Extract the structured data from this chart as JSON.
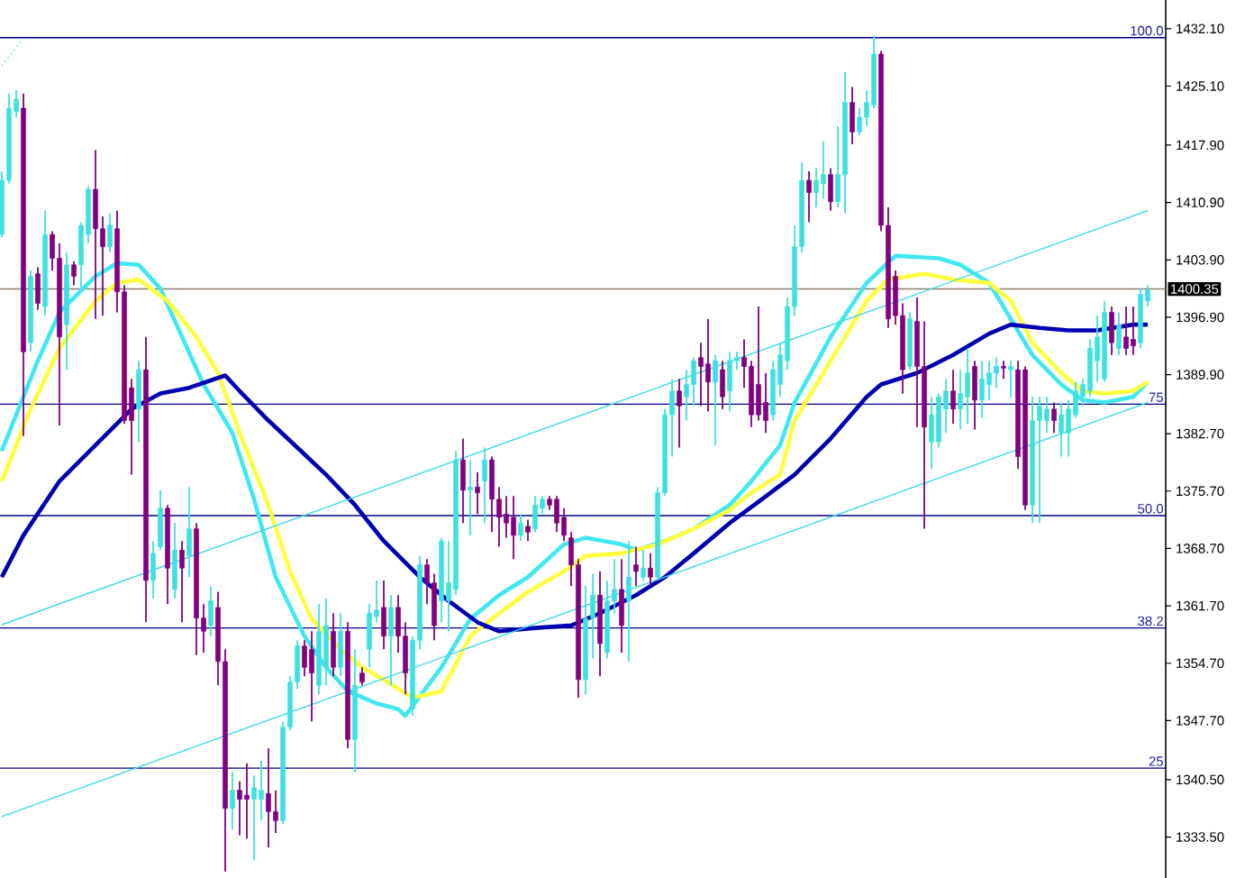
{
  "chart_data": {
    "type": "candlestick",
    "categories": [
      null,
      null,
      null,
      null,
      null,
      null,
      null,
      null,
      null,
      null,
      null,
      null,
      null,
      null,
      null,
      null,
      null,
      null,
      null,
      null,
      null,
      null,
      null,
      null,
      null,
      null,
      null,
      null,
      null,
      null,
      null,
      null,
      null,
      null,
      null,
      null,
      null,
      null,
      null,
      null,
      null,
      null,
      null,
      null,
      null,
      null,
      null,
      null,
      null,
      null,
      null,
      null,
      null,
      null,
      null,
      null,
      null,
      null,
      null,
      null,
      null,
      null,
      null,
      null,
      null,
      null,
      null,
      null,
      null,
      null,
      null,
      null,
      null,
      null,
      null,
      null,
      null,
      null,
      null,
      null,
      null,
      null,
      null,
      null,
      null,
      null,
      null,
      null,
      null,
      null,
      null,
      null,
      null,
      null,
      null,
      null,
      null,
      null,
      null,
      null,
      null,
      null,
      null,
      null,
      null,
      null,
      null,
      null,
      null,
      null,
      null,
      null,
      null,
      null,
      null,
      null,
      null,
      null,
      null,
      null,
      null,
      null,
      null,
      null,
      null,
      null,
      null,
      null,
      null,
      null,
      null,
      null,
      null,
      null,
      null,
      null,
      null,
      null,
      null,
      null,
      null,
      null,
      null,
      null,
      null,
      null,
      null,
      null,
      null,
      null,
      null,
      null,
      null,
      null,
      null,
      null,
      null,
      null,
      null,
      null
    ],
    "ohlc": [
      [
        1407.0,
        1414.7,
        1406.6,
        1413.6
      ],
      [
        1413.6,
        1424.2,
        1413.2,
        1422.4
      ],
      [
        1422.0,
        1424.6,
        1421.3,
        1423.5
      ],
      [
        1422.4,
        1424.2,
        1382.4,
        1392.7
      ],
      [
        1393.8,
        1402.6,
        1392.7,
        1401.9
      ],
      [
        1402.2,
        1403.0,
        1397.8,
        1398.6
      ],
      [
        1398.2,
        1409.9,
        1397.1,
        1407.0
      ],
      [
        1407.0,
        1407.4,
        1402.6,
        1404.1
      ],
      [
        1404.1,
        1405.9,
        1383.7,
        1394.5
      ],
      [
        1396.0,
        1404.8,
        1390.5,
        1403.3
      ],
      [
        1403.3,
        1403.7,
        1400.8,
        1401.9
      ],
      [
        1403.3,
        1408.5,
        1400.4,
        1408.1
      ],
      [
        1407.0,
        1412.9,
        1405.9,
        1412.5
      ],
      [
        1412.5,
        1417.3,
        1396.7,
        1407.7
      ],
      [
        1407.7,
        1409.2,
        1397.1,
        1405.5
      ],
      [
        1405.5,
        1409.6,
        1404.8,
        1408.1
      ],
      [
        1407.7,
        1409.9,
        1397.5,
        1400.0
      ],
      [
        1400.0,
        1400.8,
        1383.9,
        1384.3
      ],
      [
        1388.3,
        1389.4,
        1377.7,
        1384.3
      ],
      [
        1385.7,
        1391.6,
        1381.7,
        1390.5
      ],
      [
        1390.5,
        1394.5,
        1359.7,
        1364.8
      ],
      [
        1364.8,
        1369.6,
        1362.6,
        1368.1
      ],
      [
        1368.9,
        1375.8,
        1368.5,
        1373.6
      ],
      [
        1373.6,
        1374.0,
        1361.9,
        1366.3
      ],
      [
        1363.7,
        1371.8,
        1362.6,
        1368.5
      ],
      [
        1368.5,
        1369.6,
        1359.7,
        1366.3
      ],
      [
        1367.8,
        1376.2,
        1365.2,
        1371.1
      ],
      [
        1371.1,
        1371.8,
        1355.7,
        1360.2
      ],
      [
        1360.2,
        1361.9,
        1356.0,
        1358.6
      ],
      [
        1359.3,
        1364.1,
        1358.0,
        1362.3
      ],
      [
        1361.5,
        1363.4,
        1352.0,
        1354.9
      ],
      [
        1354.9,
        1356.4,
        1329.3,
        1337.0
      ],
      [
        1337.0,
        1341.4,
        1334.4,
        1339.2
      ],
      [
        1339.2,
        1340.3,
        1333.7,
        1338.1
      ],
      [
        1338.6,
        1342.5,
        1333.3,
        1338.1
      ],
      [
        1338.1,
        1341.0,
        1330.7,
        1339.5
      ],
      [
        1338.1,
        1342.8,
        1335.5,
        1339.2
      ],
      [
        1338.8,
        1344.3,
        1332.2,
        1336.6
      ],
      [
        1336.6,
        1339.2,
        1334.0,
        1335.5
      ],
      [
        1335.5,
        1347.6,
        1335.1,
        1346.9
      ],
      [
        1346.9,
        1353.1,
        1346.5,
        1352.4
      ],
      [
        1352.4,
        1357.5,
        1351.6,
        1356.8
      ],
      [
        1356.8,
        1357.5,
        1353.1,
        1354.2
      ],
      [
        1356.4,
        1358.6,
        1347.6,
        1353.5
      ],
      [
        1352.0,
        1361.9,
        1350.9,
        1358.6
      ],
      [
        1354.2,
        1362.6,
        1352.0,
        1359.3
      ],
      [
        1358.6,
        1360.8,
        1353.1,
        1354.2
      ],
      [
        1354.2,
        1360.8,
        1353.1,
        1358.6
      ],
      [
        1358.6,
        1359.7,
        1344.3,
        1345.4
      ],
      [
        1345.4,
        1356.4,
        1341.4,
        1352.0
      ],
      [
        1353.5,
        1354.2,
        1352.0,
        1352.4
      ],
      [
        1356.4,
        1361.9,
        1354.2,
        1360.8
      ],
      [
        1360.4,
        1364.8,
        1359.7,
        1361.2
      ],
      [
        1361.5,
        1364.8,
        1356.4,
        1358.0
      ],
      [
        1358.0,
        1363.0,
        1352.0,
        1361.5
      ],
      [
        1361.5,
        1363.0,
        1356.0,
        1358.0
      ],
      [
        1358.0,
        1359.7,
        1350.9,
        1353.5
      ],
      [
        1349.1,
        1358.0,
        1348.3,
        1357.5
      ],
      [
        1357.5,
        1367.8,
        1356.4,
        1366.7
      ],
      [
        1366.7,
        1367.4,
        1361.9,
        1364.5
      ],
      [
        1364.5,
        1365.6,
        1357.5,
        1359.3
      ],
      [
        1362.3,
        1370.0,
        1359.7,
        1369.6
      ],
      [
        1362.3,
        1369.6,
        1358.6,
        1364.5
      ],
      [
        1363.7,
        1380.6,
        1363.0,
        1379.5
      ],
      [
        1379.5,
        1382.1,
        1371.8,
        1375.8
      ],
      [
        1375.8,
        1379.5,
        1370.3,
        1376.2
      ],
      [
        1376.2,
        1378.0,
        1372.9,
        1375.5
      ],
      [
        1376.9,
        1381.0,
        1371.8,
        1379.5
      ],
      [
        1379.5,
        1379.9,
        1370.7,
        1374.7
      ],
      [
        1374.7,
        1376.2,
        1368.9,
        1372.5
      ],
      [
        1372.9,
        1375.1,
        1370.0,
        1371.8
      ],
      [
        1372.5,
        1375.1,
        1367.4,
        1370.3
      ],
      [
        1370.3,
        1372.9,
        1369.6,
        1371.8
      ],
      [
        1371.4,
        1372.2,
        1369.6,
        1370.7
      ],
      [
        1371.1,
        1375.1,
        1370.7,
        1374.0
      ],
      [
        1373.6,
        1375.1,
        1372.9,
        1374.7
      ],
      [
        1374.7,
        1375.1,
        1373.4,
        1374.0
      ],
      [
        1374.7,
        1375.1,
        1370.7,
        1371.8
      ],
      [
        1372.5,
        1373.6,
        1369.6,
        1370.3
      ],
      [
        1370.0,
        1370.7,
        1364.1,
        1366.7
      ],
      [
        1366.7,
        1367.4,
        1350.5,
        1352.7
      ],
      [
        1352.7,
        1364.1,
        1350.9,
        1360.2
      ],
      [
        1360.2,
        1365.6,
        1355.3,
        1363.0
      ],
      [
        1363.0,
        1365.9,
        1353.1,
        1357.1
      ],
      [
        1356.0,
        1364.8,
        1355.3,
        1362.3
      ],
      [
        1362.3,
        1367.4,
        1360.8,
        1363.7
      ],
      [
        1363.7,
        1367.4,
        1356.0,
        1359.3
      ],
      [
        1362.3,
        1369.6,
        1354.9,
        1365.2
      ],
      [
        1366.7,
        1368.9,
        1364.1,
        1365.9
      ],
      [
        1365.2,
        1368.5,
        1364.8,
        1366.3
      ],
      [
        1366.3,
        1368.1,
        1364.1,
        1365.2
      ],
      [
        1365.2,
        1376.2,
        1364.8,
        1375.5
      ],
      [
        1375.5,
        1385.7,
        1375.1,
        1385.0
      ],
      [
        1385.0,
        1389.4,
        1379.9,
        1387.9
      ],
      [
        1387.9,
        1389.4,
        1381.0,
        1386.1
      ],
      [
        1387.2,
        1390.5,
        1384.3,
        1388.7
      ],
      [
        1388.7,
        1392.0,
        1386.1,
        1391.6
      ],
      [
        1392.0,
        1393.8,
        1386.1,
        1390.9
      ],
      [
        1391.2,
        1396.7,
        1385.4,
        1389.0
      ],
      [
        1389.0,
        1392.3,
        1381.3,
        1391.6
      ],
      [
        1390.5,
        1391.6,
        1385.7,
        1387.2
      ],
      [
        1387.9,
        1392.7,
        1385.4,
        1391.6
      ],
      [
        1391.6,
        1392.7,
        1390.5,
        1392.0
      ],
      [
        1392.0,
        1394.2,
        1388.3,
        1390.9
      ],
      [
        1390.9,
        1391.6,
        1383.5,
        1385.0
      ],
      [
        1388.7,
        1398.2,
        1384.3,
        1385.0
      ],
      [
        1386.5,
        1390.1,
        1382.8,
        1384.3
      ],
      [
        1385.0,
        1391.6,
        1384.3,
        1390.5
      ],
      [
        1388.7,
        1393.8,
        1387.2,
        1392.3
      ],
      [
        1391.6,
        1399.3,
        1390.5,
        1398.2
      ],
      [
        1398.2,
        1408.1,
        1397.1,
        1405.5
      ],
      [
        1405.5,
        1415.8,
        1404.8,
        1413.6
      ],
      [
        1413.6,
        1414.7,
        1408.5,
        1412.1
      ],
      [
        1412.1,
        1415.1,
        1410.3,
        1413.6
      ],
      [
        1413.2,
        1418.4,
        1411.4,
        1414.3
      ],
      [
        1414.3,
        1415.1,
        1409.9,
        1411.0
      ],
      [
        1411.0,
        1420.2,
        1410.3,
        1414.3
      ],
      [
        1414.3,
        1426.8,
        1409.6,
        1423.1
      ],
      [
        1423.1,
        1425.0,
        1418.0,
        1419.5
      ],
      [
        1419.5,
        1422.4,
        1419.1,
        1421.3
      ],
      [
        1421.3,
        1424.6,
        1420.2,
        1423.1
      ],
      [
        1422.8,
        1431.2,
        1422.4,
        1429.0
      ],
      [
        1429.0,
        1429.4,
        1407.4,
        1408.1
      ],
      [
        1408.1,
        1410.3,
        1395.6,
        1396.7
      ],
      [
        1401.9,
        1402.6,
        1396.0,
        1397.1
      ],
      [
        1397.1,
        1398.6,
        1387.6,
        1390.5
      ],
      [
        1390.9,
        1397.5,
        1390.5,
        1396.7
      ],
      [
        1396.4,
        1399.3,
        1383.5,
        1390.9
      ],
      [
        1390.9,
        1396.4,
        1371.1,
        1383.5
      ],
      [
        1381.7,
        1387.2,
        1378.4,
        1385.0
      ],
      [
        1381.7,
        1387.6,
        1381.0,
        1387.2
      ],
      [
        1385.7,
        1389.4,
        1382.8,
        1387.9
      ],
      [
        1387.9,
        1390.5,
        1383.9,
        1385.7
      ],
      [
        1385.7,
        1390.5,
        1383.2,
        1387.6
      ],
      [
        1387.2,
        1393.1,
        1383.9,
        1390.1
      ],
      [
        1390.9,
        1391.6,
        1383.2,
        1386.8
      ],
      [
        1386.8,
        1391.6,
        1384.6,
        1389.4
      ],
      [
        1388.7,
        1391.6,
        1386.8,
        1390.1
      ],
      [
        1390.1,
        1392.0,
        1388.3,
        1390.9
      ],
      [
        1390.9,
        1391.6,
        1389.4,
        1390.7
      ],
      [
        1390.5,
        1391.6,
        1387.2,
        1390.9
      ],
      [
        1390.5,
        1391.6,
        1378.4,
        1379.9
      ],
      [
        1390.5,
        1390.9,
        1373.4,
        1374.0
      ],
      [
        1374.0,
        1387.2,
        1371.8,
        1384.3
      ],
      [
        1384.3,
        1387.2,
        1371.8,
        1386.1
      ],
      [
        1384.3,
        1387.2,
        1382.8,
        1385.7
      ],
      [
        1385.7,
        1386.5,
        1382.8,
        1384.3
      ],
      [
        1382.8,
        1386.5,
        1379.9,
        1385.0
      ],
      [
        1382.8,
        1386.8,
        1379.9,
        1385.7
      ],
      [
        1385.0,
        1389.0,
        1384.6,
        1387.9
      ],
      [
        1387.2,
        1389.4,
        1386.1,
        1388.7
      ],
      [
        1387.9,
        1394.2,
        1387.2,
        1393.1
      ],
      [
        1391.6,
        1397.1,
        1389.0,
        1394.5
      ],
      [
        1389.4,
        1398.9,
        1389.0,
        1397.5
      ],
      [
        1397.5,
        1398.2,
        1392.3,
        1393.8
      ],
      [
        1393.1,
        1397.5,
        1392.3,
        1396.0
      ],
      [
        1394.5,
        1398.2,
        1392.3,
        1393.1
      ],
      [
        1394.2,
        1398.2,
        1392.3,
        1393.4
      ],
      [
        1393.8,
        1400.4,
        1393.1,
        1399.7
      ],
      [
        1398.9,
        1400.8,
        1398.2,
        1400.2
      ]
    ],
    "colors": [
      "#40e0e0",
      "#40e0e0",
      "#40e0e0",
      "#800080",
      "#40e0e0",
      "#800080",
      "#40e0e0",
      "#800080",
      "#800080",
      "#40e0e0",
      "#800080",
      "#40e0e0",
      "#40e0e0",
      "#800080",
      "#800080",
      "#40e0e0",
      "#800080",
      "#800080",
      "#800080",
      "#40e0e0",
      "#800080",
      "#40e0e0",
      "#40e0e0",
      "#800080",
      "#40e0e0",
      "#800080",
      "#40e0e0",
      "#800080",
      "#800080",
      "#40e0e0",
      "#800080",
      "#800080",
      "#40e0e0",
      "#800080",
      "#800080",
      "#40e0e0",
      "#40e0e0",
      "#800080",
      "#800080",
      "#40e0e0",
      "#40e0e0",
      "#40e0e0",
      "#800080",
      "#800080",
      "#40e0e0",
      "#40e0e0",
      "#800080",
      "#40e0e0",
      "#800080",
      "#40e0e0",
      "#800080",
      "#40e0e0",
      "#40e0e0",
      "#800080",
      "#40e0e0",
      "#800080",
      "#800080",
      "#40e0e0",
      "#40e0e0",
      "#800080",
      "#800080",
      "#40e0e0",
      "#40e0e0",
      "#40e0e0",
      "#800080",
      "#40e0e0",
      "#800080",
      "#40e0e0",
      "#800080",
      "#800080",
      "#800080",
      "#800080",
      "#40e0e0",
      "#800080",
      "#40e0e0",
      "#40e0e0",
      "#800080",
      "#800080",
      "#800080",
      "#800080",
      "#800080",
      "#40e0e0",
      "#40e0e0",
      "#800080",
      "#40e0e0",
      "#40e0e0",
      "#800080",
      "#40e0e0",
      "#800080",
      "#40e0e0",
      "#800080",
      "#40e0e0",
      "#40e0e0",
      "#40e0e0",
      "#800080",
      "#40e0e0",
      "#40e0e0",
      "#800080",
      "#800080",
      "#40e0e0",
      "#800080",
      "#40e0e0",
      "#40e0e0",
      "#800080",
      "#800080",
      "#800080",
      "#800080",
      "#40e0e0",
      "#40e0e0",
      "#40e0e0",
      "#40e0e0",
      "#40e0e0",
      "#800080",
      "#40e0e0",
      "#40e0e0",
      "#800080",
      "#40e0e0",
      "#40e0e0",
      "#800080",
      "#40e0e0",
      "#40e0e0",
      "#40e0e0",
      "#800080",
      "#800080",
      "#800080",
      "#800080",
      "#40e0e0",
      "#800080",
      "#800080",
      "#40e0e0",
      "#40e0e0",
      "#40e0e0",
      "#800080",
      "#40e0e0",
      "#40e0e0",
      "#800080",
      "#40e0e0",
      "#40e0e0",
      "#40e0e0",
      "#800080",
      "#40e0e0",
      "#800080",
      "#800080",
      "#40e0e0",
      "#40e0e0",
      "#40e0e0",
      "#800080",
      "#40e0e0",
      "#40e0e0",
      "#40e0e0",
      "#40e0e0",
      "#40e0e0",
      "#40e0e0",
      "#40e0e0",
      "#800080",
      "#40e0e0",
      "#800080",
      "#800080",
      "#40e0e0",
      "#40e0e0"
    ],
    "series": [
      {
        "type": "line",
        "color": "#40e8f0",
        "values": [
          1380.6,
          null,
          null,
          null,
          null,
          1391.6,
          null,
          null,
          1397.5,
          null,
          null,
          null,
          null,
          1401.9,
          null,
          null,
          1403.5,
          null,
          null,
          1403.3,
          null,
          null,
          1400.4,
          null,
          null,
          1394.5,
          null,
          null,
          1388.7,
          null,
          null,
          null,
          1382.8,
          null,
          null,
          1374.7,
          null,
          null,
          1365.2,
          null,
          null,
          null,
          1358.0,
          null,
          null,
          1354.2,
          null,
          null,
          1351.3,
          null,
          null,
          null,
          1349.8,
          null,
          null,
          1349.1,
          1348.3,
          null,
          null,
          null,
          null,
          1354.2,
          null,
          null,
          null,
          1360.1,
          null,
          null,
          null,
          1363.0,
          null,
          null,
          null,
          1365.2,
          null,
          null,
          null,
          null,
          1369.2,
          null,
          null,
          1370.0,
          null,
          null,
          null,
          null,
          1369.2,
          null,
          1368.5,
          null,
          null,
          null,
          1369.6,
          null,
          null,
          null,
          1371.1,
          null,
          null,
          null,
          null,
          1374.0,
          null,
          null,
          1376.9,
          null,
          null,
          null,
          1381.3,
          null,
          1386.5,
          null,
          null,
          null,
          null,
          1394.5,
          null,
          null,
          null,
          null,
          1401.1,
          null,
          null,
          null,
          1404.4,
          null,
          null,
          null,
          null,
          null,
          1404.1,
          null,
          null,
          1403.3,
          null,
          null,
          null,
          1401.1,
          null,
          null,
          1396.7,
          null,
          null,
          1392.3,
          null,
          null,
          null,
          1388.7,
          null,
          null,
          1386.8,
          null,
          null,
          1386.5,
          null,
          null,
          null,
          1387.2,
          null,
          1389.0
        ]
      },
      {
        "type": "line",
        "color": "#ffff40",
        "values": [
          1376.9,
          null,
          null,
          null,
          1385.7,
          null,
          null,
          null,
          1393.1,
          null,
          null,
          null,
          null,
          1398.9,
          null,
          null,
          1401.1,
          null,
          null,
          1401.5,
          null,
          null,
          null,
          1398.9,
          null,
          null,
          null,
          1394.5,
          null,
          null,
          1390.1,
          null,
          null,
          1382.8,
          null,
          null,
          null,
          1374.0,
          null,
          null,
          1365.9,
          null,
          null,
          1360.1,
          null,
          null,
          null,
          1356.4,
          null,
          null,
          1354.2,
          null,
          null,
          1352.7,
          null,
          null,
          null,
          1350.5,
          null,
          null,
          null,
          1351.3,
          null,
          null,
          null,
          1358.0,
          null,
          null,
          null,
          1360.8,
          null,
          null,
          null,
          1363.4,
          null,
          null,
          null,
          null,
          1365.9,
          null,
          null,
          1367.8,
          null,
          null,
          null,
          null,
          1368.1,
          null,
          null,
          null,
          null,
          1369.2,
          null,
          null,
          null,
          null,
          1371.1,
          null,
          null,
          null,
          null,
          1373.4,
          null,
          null,
          1375.5,
          null,
          null,
          null,
          1377.7,
          null,
          1384.3,
          null,
          null,
          null,
          null,
          1391.6,
          null,
          null,
          null,
          null,
          1398.9,
          null,
          null,
          1401.5,
          null,
          null,
          null,
          null,
          1402.2,
          null,
          null,
          null,
          1401.5,
          null,
          null,
          null,
          null,
          1401.1,
          null,
          null,
          1398.9,
          null,
          null,
          1393.8,
          null,
          null,
          null,
          1390.1,
          null,
          null,
          1387.9,
          null,
          null,
          1387.6,
          null,
          null,
          null,
          1387.9,
          null,
          1389.0
        ]
      },
      {
        "type": "line",
        "color": "#0000b0",
        "values": [
          1365.2,
          null,
          null,
          1370.3,
          null,
          null,
          null,
          null,
          1376.9,
          null,
          null,
          null,
          null,
          1381.3,
          null,
          null,
          null,
          null,
          1385.7,
          null,
          null,
          null,
          1387.6,
          null,
          null,
          null,
          1388.3,
          null,
          null,
          null,
          null,
          1389.8,
          null,
          1387.9,
          null,
          null,
          null,
          1384.3,
          null,
          null,
          null,
          1381.0,
          null,
          null,
          null,
          1377.7,
          null,
          null,
          null,
          1374.0,
          null,
          null,
          null,
          1369.6,
          null,
          null,
          null,
          null,
          1365.2,
          null,
          null,
          null,
          1362.3,
          null,
          null,
          null,
          1359.7,
          null,
          null,
          1358.6,
          null,
          null,
          null,
          null,
          1359.0,
          null,
          null,
          null,
          null,
          1359.3,
          null,
          null,
          null,
          1360.8,
          null,
          null,
          null,
          null,
          1363.0,
          null,
          null,
          null,
          1365.2,
          null,
          null,
          null,
          1368.1,
          null,
          null,
          null,
          null,
          1371.8,
          null,
          null,
          null,
          1374.4,
          null,
          null,
          null,
          null,
          1377.7,
          null,
          null,
          null,
          null,
          1382.1,
          null,
          null,
          null,
          null,
          1387.2,
          null,
          1388.7,
          null,
          null,
          null,
          null,
          1390.1,
          null,
          null,
          null,
          null,
          1392.3,
          null,
          null,
          null,
          null,
          1394.9,
          null,
          null,
          1396.0,
          null,
          null,
          null,
          1395.6,
          null,
          null,
          null,
          1395.3,
          null,
          null,
          null,
          1395.3,
          null,
          null,
          null,
          null,
          1396.0,
          null,
          1396.0
        ]
      },
      {
        "type": "line",
        "color": "#40d8e8",
        "values": [
          1359.4,
          null,
          null,
          null,
          null,
          null,
          null,
          null,
          null,
          null,
          null,
          null,
          null,
          null,
          null,
          null,
          null,
          null,
          null,
          null,
          null,
          null,
          null,
          null,
          null,
          null,
          null,
          null,
          null,
          null,
          null,
          null,
          null,
          null,
          null,
          null,
          null,
          null,
          null,
          null,
          null,
          null,
          null,
          null,
          null,
          null,
          null,
          null,
          null,
          null,
          null,
          null,
          null,
          null,
          null,
          null,
          null,
          null,
          null,
          null,
          null,
          null,
          null,
          null,
          null,
          null,
          null,
          null,
          null,
          null,
          null,
          null,
          null,
          null,
          null,
          null,
          null,
          null,
          null,
          null,
          null,
          null,
          null,
          null,
          null,
          null,
          null,
          null,
          null,
          null,
          null,
          null,
          null,
          null,
          null,
          null,
          null,
          null,
          null,
          null,
          null,
          null,
          null,
          null,
          null,
          null,
          null,
          null,
          null,
          null,
          null,
          null,
          null,
          null,
          null,
          null,
          null,
          null,
          null,
          null,
          null,
          null,
          null,
          null,
          null,
          null,
          null,
          null,
          null,
          null,
          null,
          null,
          null,
          null,
          null,
          null,
          null,
          null,
          null,
          null,
          null,
          null,
          null,
          null,
          null,
          null,
          null,
          null,
          null,
          null,
          null,
          null,
          null,
          null,
          null,
          null,
          null,
          null,
          null,
          1409.9
        ]
      },
      {
        "type": "line",
        "color": "#40d8e8",
        "values": [
          1336.0,
          null,
          null,
          null,
          null,
          null,
          null,
          null,
          null,
          null,
          null,
          null,
          null,
          null,
          null,
          null,
          null,
          null,
          null,
          null,
          null,
          null,
          null,
          null,
          null,
          null,
          null,
          null,
          null,
          null,
          null,
          null,
          null,
          null,
          null,
          null,
          null,
          null,
          null,
          null,
          null,
          null,
          null,
          null,
          null,
          null,
          null,
          null,
          null,
          null,
          null,
          null,
          null,
          null,
          null,
          null,
          null,
          null,
          null,
          null,
          null,
          null,
          null,
          null,
          null,
          null,
          null,
          null,
          null,
          null,
          null,
          null,
          null,
          null,
          null,
          null,
          null,
          null,
          null,
          null,
          null,
          null,
          null,
          null,
          null,
          null,
          null,
          null,
          null,
          null,
          null,
          null,
          null,
          null,
          null,
          null,
          null,
          null,
          null,
          null,
          null,
          null,
          null,
          null,
          null,
          null,
          null,
          null,
          null,
          null,
          null,
          null,
          null,
          null,
          null,
          null,
          null,
          null,
          null,
          null,
          null,
          null,
          null,
          null,
          null,
          null,
          null,
          null,
          null,
          null,
          null,
          null,
          null,
          null,
          null,
          null,
          null,
          null,
          null,
          null,
          null,
          null,
          null,
          null,
          null,
          null,
          null,
          null,
          null,
          null,
          null,
          null,
          null,
          null,
          null,
          null,
          null,
          null,
          null,
          1386.5
        ]
      },
      {
        "type": "line",
        "color": "#40d8e8",
        "line_style": "dotted",
        "values": [
          1427.6,
          null,
          null,
          1430.9,
          null,
          null,
          null,
          null,
          null,
          null,
          null,
          null,
          null,
          null,
          null,
          null,
          null,
          null,
          null,
          null,
          null,
          null,
          null,
          null,
          null,
          null,
          null,
          null,
          null,
          null,
          null,
          null,
          null,
          null,
          null,
          null,
          null,
          null,
          null,
          null,
          null,
          null,
          null,
          null,
          null,
          null,
          null,
          null,
          null,
          null,
          null,
          null,
          null,
          null,
          null,
          null,
          null,
          null,
          null,
          null,
          null,
          null,
          null,
          null,
          null,
          null,
          null,
          null,
          null,
          null,
          null,
          null,
          null,
          null,
          null,
          null,
          null,
          null,
          null,
          null,
          null,
          null,
          null,
          null,
          null,
          null,
          null,
          null,
          null,
          null,
          null,
          null,
          null,
          null,
          null,
          null,
          null,
          null,
          null,
          null,
          null,
          null,
          null,
          null,
          null,
          null,
          null,
          null,
          null,
          null,
          null,
          null,
          null,
          null,
          null,
          null,
          null,
          null,
          null,
          null,
          null,
          null,
          null,
          null,
          null,
          null,
          null,
          null,
          null,
          null,
          null,
          null,
          null,
          null,
          null,
          null,
          null,
          null,
          null,
          null,
          null,
          null,
          null,
          null,
          null,
          null,
          null,
          null,
          null,
          null,
          null,
          null,
          null,
          null,
          null,
          null,
          null,
          null,
          null,
          null
        ]
      }
    ],
    "ylim": [
      1328.5,
      1435.6
    ],
    "yticks": [
      {
        "value": 1432.1,
        "label": "1432.10"
      },
      {
        "value": 1425.1,
        "label": "1425.10"
      },
      {
        "value": 1417.9,
        "label": "1417.90"
      },
      {
        "value": 1410.9,
        "label": "1410.90"
      },
      {
        "value": 1403.9,
        "label": "1403.90"
      },
      {
        "value": 1396.9,
        "label": "1396.90"
      },
      {
        "value": 1389.9,
        "label": "1389.90"
      },
      {
        "value": 1382.7,
        "label": "1382.70"
      },
      {
        "value": 1375.7,
        "label": "1375.70"
      },
      {
        "value": 1368.7,
        "label": "1368.70"
      },
      {
        "value": 1361.7,
        "label": "1361.70"
      },
      {
        "value": 1354.7,
        "label": "1354.70"
      },
      {
        "value": 1347.7,
        "label": "1347.70"
      },
      {
        "value": 1340.5,
        "label": "1340.50"
      },
      {
        "value": 1333.5,
        "label": "1333.50"
      }
    ],
    "tick_labels": "y",
    "ref_lines": [
      {
        "axis": "y",
        "value": 1431.0,
        "color": "#000080"
      },
      {
        "axis": "y",
        "value": 1386.3,
        "color": "#000080"
      },
      {
        "axis": "y",
        "value": 1372.7,
        "color": "#000080"
      },
      {
        "axis": "y",
        "value": 1359.0,
        "color": "#000080"
      },
      {
        "axis": "y",
        "value": 1341.9,
        "color": "#000080"
      },
      {
        "axis": "y",
        "value": 1400.35,
        "label": "1400.35",
        "color": "#8c8070"
      }
    ],
    "annotations": [
      {
        "text": "100.0",
        "y": 1431.0
      },
      {
        "text": "75",
        "y": 1386.3
      },
      {
        "text": "50.0",
        "y": 1372.7
      },
      {
        "text": "38.2",
        "y": 1359.0
      },
      {
        "text": "25",
        "y": 1341.9
      }
    ]
  }
}
